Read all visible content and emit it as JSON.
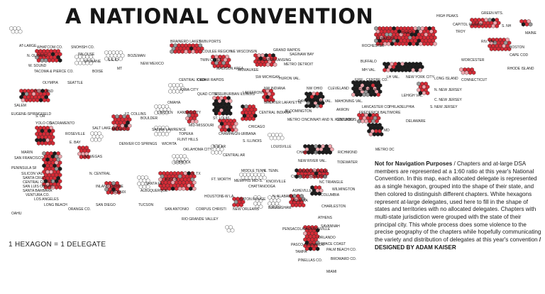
{
  "title": "A NATIONAL CONVENTION",
  "legend": "1 HEXAGON = 1 DELEGATE",
  "description": {
    "lead": "Not for Navigation Purposes",
    "body": " / Chapters and at-large DSA members are represented at a 1:60 ratio at this year's National Convention. In this map, each allocated delegate is represented as a single  hexagon, grouped into the shape of their state, and then colored to distinguish different chapters. White hexagons represent at-large delegates, used here to fill in the shape of states and territories with no allocated delegates. Chapters with multi-state jurisdiction were grouped with the state of their principal city. This whole process does some violence to the precise geography of the chapters while hopefully communicating the variety and distribution of delegates at this year's convention ",
    "credit": "/ DESIGNED BY ADAM KAISER"
  },
  "colors": {
    "red": "#d52b36",
    "black": "#1c1c1c",
    "gray": "#9a9a9a",
    "pink": "#f0a7ae",
    "white": "#ffffff"
  },
  "labels": [
    "AT-LARGE",
    "WHATCOM CO.",
    "SNOHISH CO.",
    "N. OLYMPIC",
    "W. SOUND",
    "TACOMA & PIERCE CO.",
    "OLYMPIA",
    "SEATTLE",
    "SPOKANE",
    "PALOUSE",
    "S-E ID",
    "BOISE",
    "MT",
    "BOZEMAN",
    "NEW MEXICO",
    "BRAINERD LAKES",
    "TWIN PORTS",
    "TWIN CITIES",
    "COULEE REGION",
    "NE WISCONSIN",
    "MADISON AREA",
    "MILWAUKEE",
    "GRAND RAPIDS",
    "SAGINAW BAY",
    "GREATER LANSING",
    "METRO DETROIT",
    "SW MICHIGAN",
    "HURON VAL.",
    "HIGH PEAKS",
    "GREEN MTS.",
    "CAPITOL REGION",
    "TROY",
    "S. NH",
    "MAINE",
    "ITHACA",
    "SYRACUSE",
    "ROCHESTER",
    "BUFFALO",
    "MH VAL.",
    "RIV. VAL.",
    "BOSTON",
    "CAPE COD",
    "WORCESTER",
    "RHODE ISLAND",
    "CONNECTICUT",
    "LH VAL.",
    "NEW YORK CITY",
    "LONG ISLAND",
    "N. NEW JERSEY",
    "C. NEW JERSEY",
    "S. NEW JERSEY",
    "PORTLAND",
    "SALEM",
    "EUGENE-SPRINGFIELD",
    "S. OR",
    "CENTRAL IOWA",
    "CEDAR RAPIDS",
    "IOWA CITY",
    "QUAD CITIES",
    "W. SUBURBAN ILLINOIS",
    "LAKEFRONT",
    "CHICAGO",
    "NW INDIANA",
    "GREATER LAFAYETTE",
    "CENTRAL INDIANA",
    "BLOOMINGTON",
    "NW OHIO",
    "CLEVELAND",
    "DAYTON MIAMI VAL.",
    "MAHONING VAL.",
    "AKRON",
    "METRO CINCINNATI AND N. KENTUCKY",
    "COLUMBUS",
    "ERIE",
    "CENTRE CO.",
    "PITTSBURGH",
    "LEHIGH VAL.",
    "LANCASTER CO.",
    "PHILADELPHIA",
    "DELAWARE",
    "FREDERICK",
    "BALTIMORE",
    "S. MD",
    "METRO DC",
    "YOLO CO.",
    "SACRAMENTO",
    "ROSEVILLE",
    "E. BAY",
    "MARIN",
    "SAN FRANCISCO",
    "PENINSULA SF",
    "SILICON VAL.",
    "SANTA CRUZ",
    "CENTRAL COAST",
    "SAN LUIS OBISPO",
    "SANTA BARBARA",
    "VENTURA CO.",
    "LOS ANGELES",
    "LONG BEACH",
    "ORANGE CO.",
    "SAN DIEGO",
    "INLAND EMPIRE",
    "N. CENTRAL",
    "LAS VEGAS",
    "SALT LAKE CITY",
    "MESA CO.",
    "FT. COLLINS",
    "BOULDER",
    "DENVER",
    "CO SPRINGS",
    "OMAHA",
    "LINCOLN",
    "KANSAS CITY",
    "MID-MISSOURI",
    "ST. LOUIS",
    "SALINA",
    "LAWRENCE",
    "TOPEKA",
    "FLINT HILLS",
    "WICHITA",
    "CHAMPAIGN-URBANA",
    "S. ILLINOIS",
    "LOUISVILLE",
    "OKLAHOMA CITY",
    "LUBBOCK",
    "N-W AR",
    "CENTRAL AR",
    "MIDDLE TENN.",
    "E. TENN.",
    "MEMPHIS MID-S.",
    "KNOXVILLE",
    "CHATTANOOGA",
    "CHARLOTTESVILLE",
    "RICHMOND",
    "NEW RIVER VAL.",
    "TIDEWATER",
    "WINSTON-SALEM",
    "CHARLOTTE METRO",
    "NC TRIANGLE",
    "ASHEVILLE",
    "WILMINGTON",
    "COLUMBIA",
    "CHARLESTON",
    "ATHENS",
    "ATLANTA",
    "SAVANNAH",
    "N. ALABAMA",
    "BIRMINGHAM",
    "BATON ROUGE",
    "NEW ORLEANS",
    "PENSACOLA",
    "JACKSONVILLE",
    "ORLANDO",
    "SPACE COAST",
    "PASCO-HERNANDO",
    "PALM BEACH CO.",
    "BROWARD CO.",
    "TAMPA",
    "PINELLAS CO.",
    "MIAMI",
    "PHOENIX",
    "TUCSON",
    "SANTA FE",
    "ALBUQUERQUE",
    "N. TX",
    "AUSTIN",
    "FT. WORTH",
    "HOUSTON",
    "S-W LA",
    "SAN ANTONIO",
    "RIO GRANDE VALLEY",
    "CORPUS CHRISTI",
    "OAHU"
  ]
}
